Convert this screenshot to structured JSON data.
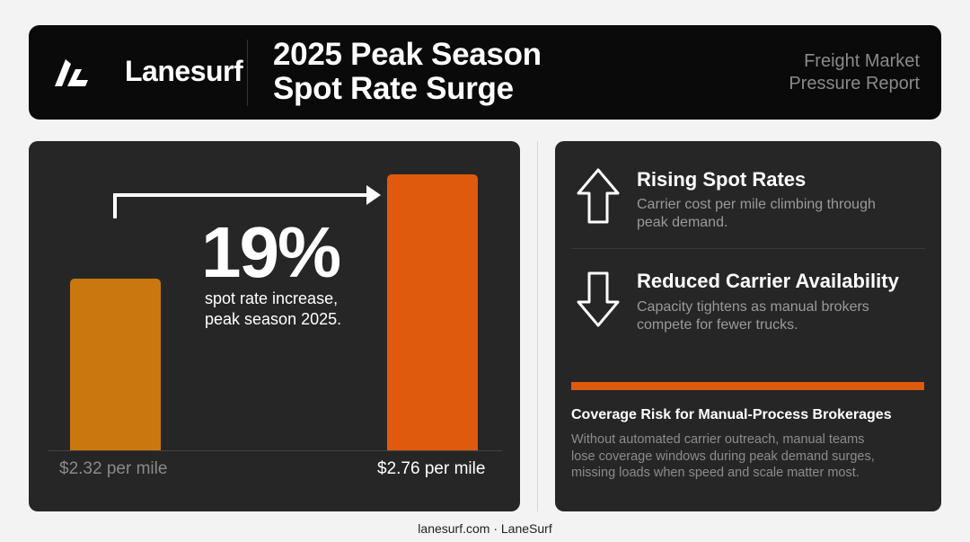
{
  "brand": {
    "name": "Lanesurf",
    "logo_icon": "lightning-bolt-icon"
  },
  "header": {
    "title_line1": "2025 Peak Season",
    "title_line2": "Spot Rate Surge",
    "subtitle_line1": "Freight Market",
    "subtitle_line2": "Pressure Report"
  },
  "colors": {
    "bar_before": "#c8780e",
    "bar_after": "#e05a0e",
    "accent": "#e05a0e",
    "card_bg": "#262626",
    "header_bg": "#0a0a0a"
  },
  "chart_data": {
    "type": "bar",
    "categories": [
      "$2.32 per mile",
      "$2.76 per mile"
    ],
    "values": [
      2.32,
      2.76
    ],
    "value_unit": "USD per mile",
    "annotation": {
      "value": "19%",
      "caption_line1": "spot rate increase,",
      "caption_line2": "peak season 2025."
    },
    "arrow": "from first bar to second bar"
  },
  "features": [
    {
      "icon": "arrow-up-icon",
      "title": "Rising Spot Rates",
      "desc_line1": "Carrier cost per mile climbing through",
      "desc_line2": "peak demand."
    },
    {
      "icon": "arrow-down-icon",
      "title": "Reduced Carrier Availability",
      "desc_line1": "Capacity tightens as manual brokers",
      "desc_line2": "compete for fewer trucks."
    }
  ],
  "risk": {
    "title": "Coverage Risk for Manual-Process Brokerages",
    "body_line1": "Without automated carrier outreach, manual teams",
    "body_line2": "lose coverage windows during peak demand surges,",
    "body_line3": "missing loads when speed and scale matter most."
  },
  "footer": {
    "text": "lanesurf.com · LaneSurf"
  }
}
